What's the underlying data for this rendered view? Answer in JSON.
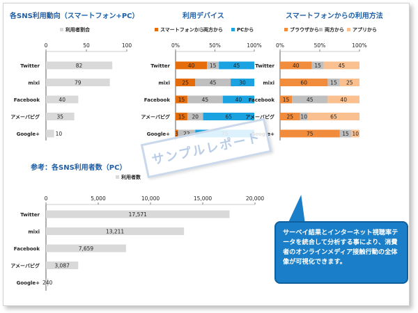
{
  "charts": {
    "sns": {
      "title": "各SNS利用動向（スマートフォン+PC）",
      "legend": "利用者割合",
      "color": "#d9d9d9",
      "ticks": [
        "0",
        "50",
        "100"
      ]
    },
    "device": {
      "title": "利用デバイス",
      "legend": [
        "スマートフォンから",
        "両方から",
        "PCから"
      ],
      "colors": [
        "#e46c0a",
        "#bfbfbf",
        "#1aa3e0"
      ],
      "ticks": [
        "0%",
        "50%",
        "100%"
      ]
    },
    "method": {
      "title": "スマートフォンからの利用方法",
      "legend": [
        "ブラウザから",
        "両方から",
        "アプリから"
      ],
      "colors": [
        "#f08c3c",
        "#bfbfbf",
        "#fac090"
      ],
      "ticks": [
        "0%",
        "50%",
        "100%"
      ]
    },
    "pc": {
      "title": "参考：各SNS利用者数（PC）",
      "legend": "利用者数",
      "color": "#d9d9d9",
      "ticks": [
        "0",
        "5,000",
        "10,000",
        "15,000",
        "20,000"
      ],
      "labels": [
        "17,571",
        "13,211",
        "7,659",
        "3,087",
        "240"
      ]
    }
  },
  "chart_data": [
    {
      "type": "bar",
      "title": "各SNS利用動向（スマートフォン+PC）",
      "categories": [
        "Twitter",
        "mixi",
        "Facebook",
        "アメーバピグ",
        "Google+"
      ],
      "series": [
        {
          "name": "利用者割合",
          "values": [
            82,
            79,
            40,
            35,
            10
          ]
        }
      ],
      "xlim": [
        0,
        100
      ]
    },
    {
      "type": "bar",
      "title": "利用デバイス",
      "categories": [
        "Twitter",
        "mixi",
        "Facebook",
        "アメーバピグ",
        "Google+"
      ],
      "series": [
        {
          "name": "スマートフォンから",
          "values": [
            40,
            25,
            15,
            15,
            3
          ]
        },
        {
          "name": "両方から",
          "values": [
            15,
            45,
            45,
            20,
            22
          ]
        },
        {
          "name": "PCから",
          "values": [
            45,
            30,
            40,
            65,
            75
          ]
        }
      ],
      "xlim": [
        0,
        100
      ]
    },
    {
      "type": "bar",
      "title": "スマートフォンからの利用方法",
      "categories": [
        "Twitter",
        "mixi",
        "Facebook",
        "アメーバピグ",
        "Google+"
      ],
      "series": [
        {
          "name": "ブラウザから",
          "values": [
            40,
            60,
            15,
            25,
            75
          ]
        },
        {
          "name": "両方から",
          "values": [
            15,
            15,
            45,
            10,
            15
          ]
        },
        {
          "name": "アプリから",
          "values": [
            45,
            25,
            40,
            65,
            10
          ]
        }
      ],
      "xlim": [
        0,
        100
      ]
    },
    {
      "type": "bar",
      "title": "参考：各SNS利用者数（PC）",
      "categories": [
        "Twitter",
        "mixi",
        "Facebook",
        "アメーバピグ",
        "Google+"
      ],
      "series": [
        {
          "name": "利用者数",
          "values": [
            17571,
            13211,
            7659,
            3087,
            240
          ]
        }
      ],
      "xlim": [
        0,
        20000
      ]
    }
  ],
  "stamp": "サンプルレポート",
  "callout": "サーベイ結果とインターネット視聴率テータを統合して分析する事により、消費者のオンラインメディア接触行動の全体像が可視化できます。"
}
